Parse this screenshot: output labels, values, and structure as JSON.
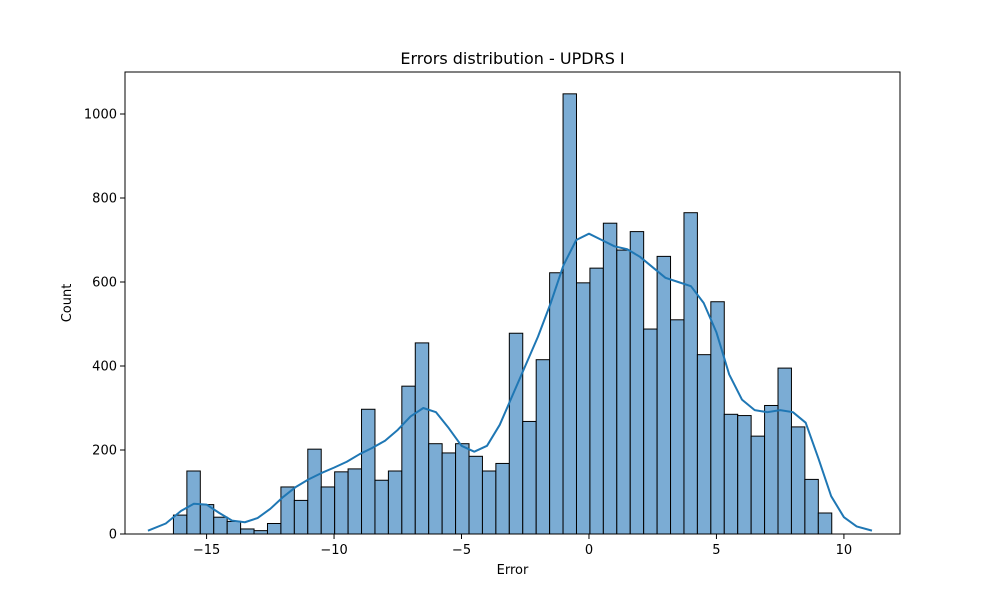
{
  "chart_data": {
    "type": "bar",
    "title": "Errors distribution - UPDRS I",
    "xlabel": "Error",
    "ylabel": "Count",
    "xlim": [
      -18.2,
      12.2
    ],
    "ylim": [
      0,
      1100
    ],
    "xticks": [
      -15,
      -10,
      -5,
      0,
      5,
      10
    ],
    "xtick_labels": [
      "−15",
      "−10",
      "−5",
      "0",
      "5",
      "10"
    ],
    "yticks": [
      0,
      200,
      400,
      600,
      800,
      1000
    ],
    "ytick_labels": [
      "0",
      "200",
      "400",
      "600",
      "800",
      "1000"
    ],
    "bin_start": -16.3,
    "bin_width": 0.527,
    "values": [
      45,
      150,
      70,
      40,
      30,
      12,
      8,
      25,
      112,
      80,
      202,
      112,
      148,
      155,
      297,
      128,
      150,
      352,
      455,
      215,
      193,
      215,
      185,
      150,
      168,
      478,
      268,
      415,
      622,
      1048,
      598,
      633,
      740,
      676,
      720,
      488,
      661,
      510,
      765,
      427,
      553,
      285,
      282,
      233,
      306,
      395,
      255,
      130,
      50
    ],
    "kde_x": [
      -17.3,
      -16.6,
      -16.0,
      -15.5,
      -15.0,
      -14.5,
      -14.0,
      -13.5,
      -13.0,
      -12.5,
      -12.0,
      -11.5,
      -11.0,
      -10.5,
      -10.0,
      -9.5,
      -9.0,
      -8.5,
      -8.0,
      -7.5,
      -7.0,
      -6.5,
      -6.0,
      -5.5,
      -5.0,
      -4.5,
      -4.0,
      -3.5,
      -3.0,
      -2.5,
      -2.0,
      -1.5,
      -1.0,
      -0.5,
      0.0,
      0.5,
      1.0,
      1.5,
      2.0,
      2.5,
      3.0,
      3.5,
      4.0,
      4.5,
      5.0,
      5.5,
      6.0,
      6.5,
      7.0,
      7.5,
      8.0,
      8.5,
      9.0,
      9.5,
      10.0,
      10.5,
      11.1
    ],
    "kde_y": [
      8,
      25,
      55,
      72,
      70,
      50,
      32,
      28,
      38,
      60,
      88,
      112,
      130,
      145,
      158,
      172,
      190,
      205,
      222,
      248,
      280,
      300,
      290,
      252,
      210,
      196,
      210,
      260,
      330,
      400,
      470,
      550,
      640,
      700,
      715,
      700,
      685,
      678,
      660,
      635,
      610,
      600,
      590,
      550,
      480,
      380,
      320,
      295,
      290,
      295,
      290,
      265,
      180,
      90,
      40,
      18,
      8
    ],
    "bar_color": "#7bacd4",
    "bar_edge_color": "#000000",
    "line_color": "#1f77b4",
    "grid": false,
    "legend": "none"
  }
}
